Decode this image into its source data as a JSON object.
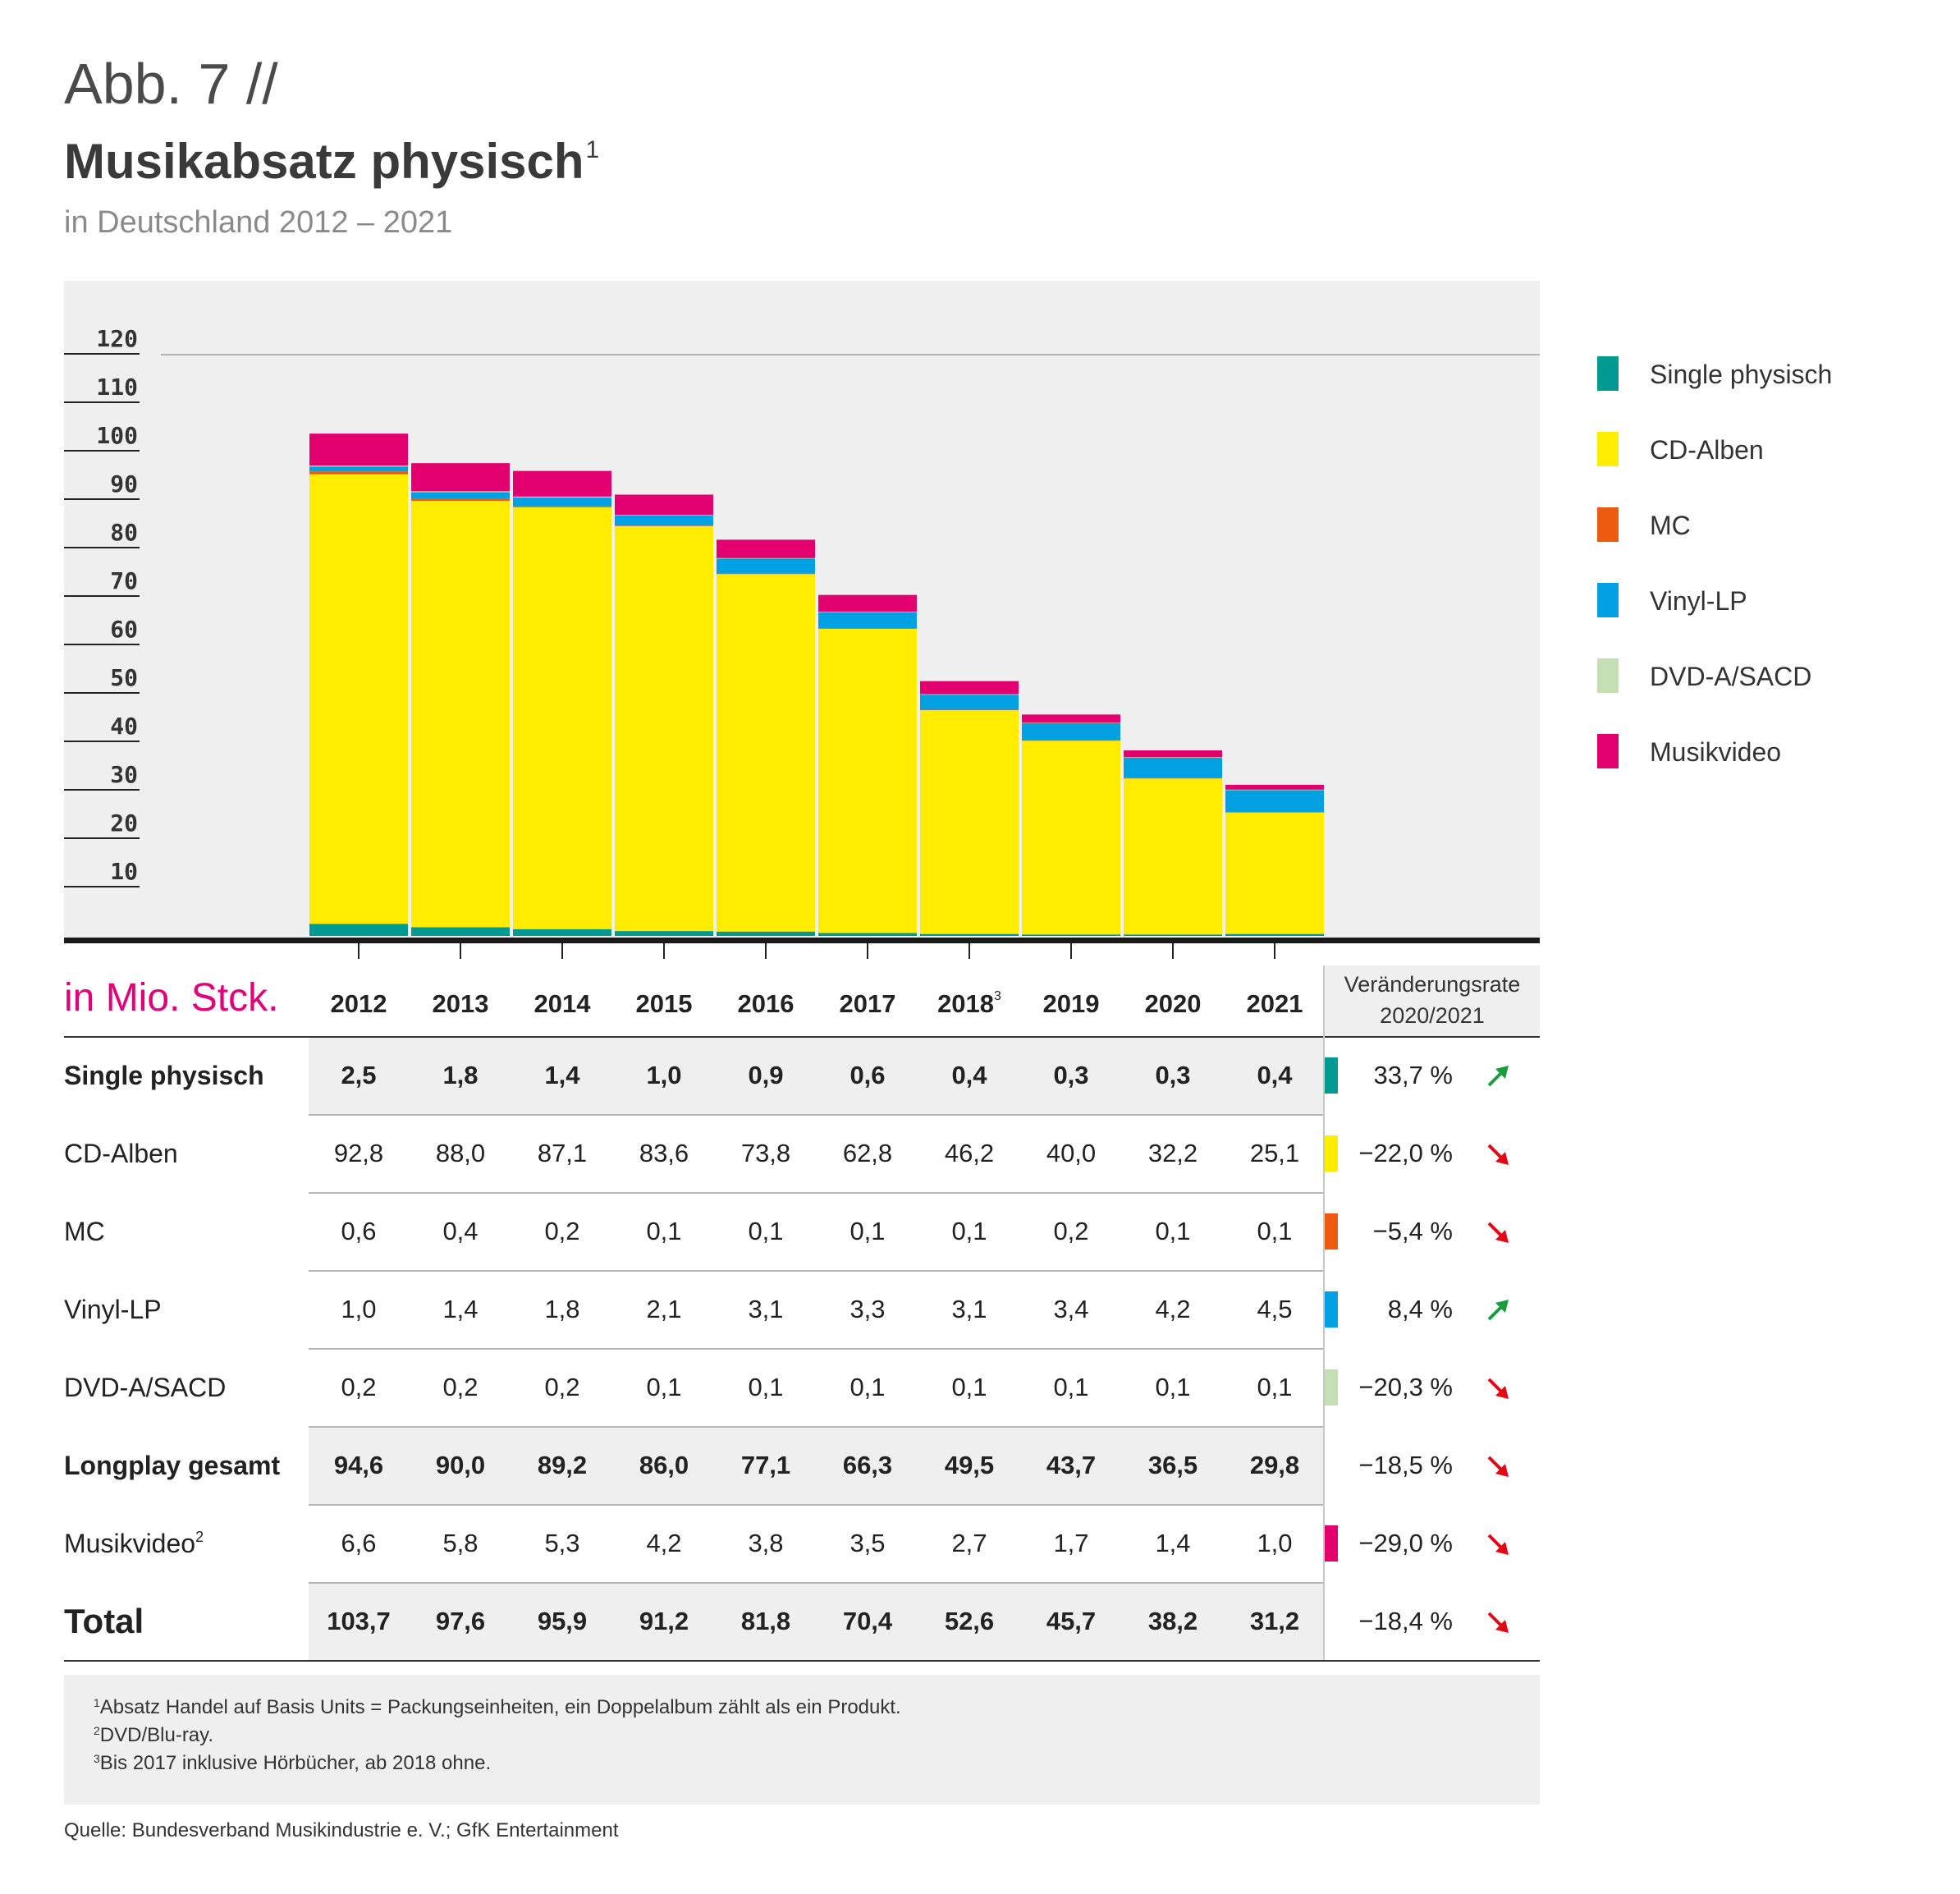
{
  "header": {
    "figure_label": "Abb. 7 //",
    "title": "Musikabsatz physisch",
    "title_sup": "1",
    "subtitle": "in Deutschland 2012 – 2021"
  },
  "colors": {
    "single": "#009a93",
    "cd": "#ffec00",
    "mc": "#ec5b10",
    "vinyl": "#00a0e3",
    "dvd": "#c5dfb4",
    "video": "#e2006e",
    "accent_unit": "#e2007a",
    "arrow_up": "#1a9c3e",
    "arrow_down": "#e30613"
  },
  "chart_data": {
    "type": "bar",
    "stacked": true,
    "categories": [
      "2012",
      "2013",
      "2014",
      "2015",
      "2016",
      "2017",
      "2018",
      "2019",
      "2020",
      "2021"
    ],
    "series": [
      {
        "name": "Single physisch",
        "key": "single",
        "values": [
          2.5,
          1.8,
          1.4,
          1.0,
          0.9,
          0.6,
          0.4,
          0.3,
          0.3,
          0.4
        ]
      },
      {
        "name": "CD-Alben",
        "key": "cd",
        "values": [
          92.8,
          88.0,
          87.1,
          83.6,
          73.8,
          62.8,
          46.2,
          40.0,
          32.2,
          25.1
        ]
      },
      {
        "name": "MC",
        "key": "mc",
        "values": [
          0.6,
          0.4,
          0.2,
          0.1,
          0.1,
          0.1,
          0.1,
          0.2,
          0.1,
          0.1
        ]
      },
      {
        "name": "Vinyl-LP",
        "key": "vinyl",
        "values": [
          1.0,
          1.4,
          1.8,
          2.1,
          3.1,
          3.3,
          3.1,
          3.4,
          4.2,
          4.5
        ]
      },
      {
        "name": "DVD-A/SACD",
        "key": "dvd",
        "values": [
          0.2,
          0.2,
          0.2,
          0.1,
          0.1,
          0.1,
          0.1,
          0.1,
          0.1,
          0.1
        ]
      },
      {
        "name": "Musikvideo",
        "key": "video",
        "values": [
          6.6,
          5.8,
          5.3,
          4.2,
          3.8,
          3.5,
          2.7,
          1.7,
          1.4,
          1.0
        ]
      }
    ],
    "yticks": [
      "10",
      "20",
      "30",
      "40",
      "50",
      "60",
      "70",
      "80",
      "90",
      "100",
      "110",
      "120"
    ],
    "ylim": [
      0,
      120
    ],
    "legend_position": "right"
  },
  "table": {
    "unit_label": "in Mio. Stck.",
    "years": [
      {
        "label": "2012"
      },
      {
        "label": "2013"
      },
      {
        "label": "2014"
      },
      {
        "label": "2015"
      },
      {
        "label": "2016"
      },
      {
        "label": "2017"
      },
      {
        "label": "2018",
        "sup": "3"
      },
      {
        "label": "2019"
      },
      {
        "label": "2020"
      },
      {
        "label": "2021"
      }
    ],
    "change_header_line1": "Veränderungsrate",
    "change_header_line2": "2020/2021",
    "rows": [
      {
        "label": "Single physisch",
        "key": "single",
        "style": "bold",
        "shaded": true,
        "values": [
          "2,5",
          "1,8",
          "1,4",
          "1,0",
          "0,9",
          "0,6",
          "0,4",
          "0,3",
          "0,3",
          "0,4"
        ],
        "change": "33,7 %",
        "trend": "up"
      },
      {
        "label": "CD-Alben",
        "key": "cd",
        "style": "normal",
        "shaded": false,
        "values": [
          "92,8",
          "88,0",
          "87,1",
          "83,6",
          "73,8",
          "62,8",
          "46,2",
          "40,0",
          "32,2",
          "25,1"
        ],
        "change": "−22,0 %",
        "trend": "down"
      },
      {
        "label": "MC",
        "key": "mc",
        "style": "normal",
        "shaded": false,
        "values": [
          "0,6",
          "0,4",
          "0,2",
          "0,1",
          "0,1",
          "0,1",
          "0,1",
          "0,2",
          "0,1",
          "0,1"
        ],
        "change": "−5,4 %",
        "trend": "down"
      },
      {
        "label": "Vinyl-LP",
        "key": "vinyl",
        "style": "normal",
        "shaded": false,
        "values": [
          "1,0",
          "1,4",
          "1,8",
          "2,1",
          "3,1",
          "3,3",
          "3,1",
          "3,4",
          "4,2",
          "4,5"
        ],
        "change": "8,4 %",
        "trend": "up"
      },
      {
        "label": "DVD-A/SACD",
        "key": "dvd",
        "style": "normal",
        "shaded": false,
        "values": [
          "0,2",
          "0,2",
          "0,2",
          "0,1",
          "0,1",
          "0,1",
          "0,1",
          "0,1",
          "0,1",
          "0,1"
        ],
        "change": "−20,3 %",
        "trend": "down"
      },
      {
        "label": "Longplay gesamt",
        "key": "",
        "style": "bold",
        "shaded": true,
        "values": [
          "94,6",
          "90,0",
          "89,2",
          "86,0",
          "77,1",
          "66,3",
          "49,5",
          "43,7",
          "36,5",
          "29,8"
        ],
        "change": "−18,5 %",
        "trend": "down"
      },
      {
        "label": "Musikvideo",
        "sup": "2",
        "key": "video",
        "style": "normal",
        "shaded": false,
        "values": [
          "6,6",
          "5,8",
          "5,3",
          "4,2",
          "3,8",
          "3,5",
          "2,7",
          "1,7",
          "1,4",
          "1,0"
        ],
        "change": "−29,0 %",
        "trend": "down"
      },
      {
        "label": "Total",
        "key": "",
        "style": "total",
        "shaded": true,
        "values": [
          "103,7",
          "97,6",
          "95,9",
          "91,2",
          "81,8",
          "70,4",
          "52,6",
          "45,7",
          "38,2",
          "31,2"
        ],
        "change": "−18,4 %",
        "trend": "down"
      }
    ]
  },
  "footnotes": [
    {
      "num": "1",
      "text": "Absatz Handel auf Basis Units = Packungseinheiten, ein Doppelalbum zählt als ein Produkt."
    },
    {
      "num": "2",
      "text": "DVD/Blu-ray."
    },
    {
      "num": "3",
      "text": "Bis 2017 inklusive Hörbücher, ab 2018 ohne."
    }
  ],
  "source": "Quelle: Bundesverband Musikindustrie e. V.; GfK Entertainment"
}
